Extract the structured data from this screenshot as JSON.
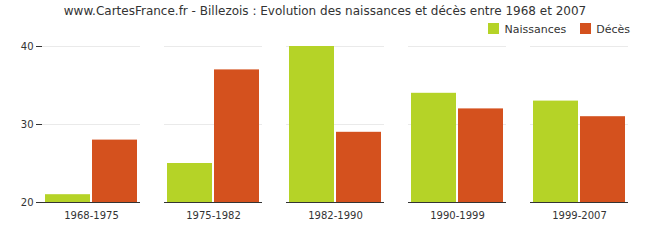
{
  "chart_data": {
    "type": "bar",
    "title": "www.CartesFrance.fr - Billezois : Evolution des naissances et décès entre 1968 et 2007",
    "categories": [
      "1968-1975",
      "1975-1982",
      "1982-1990",
      "1990-1999",
      "1999-2007"
    ],
    "series": [
      {
        "name": "Naissances",
        "color": "#b5d327",
        "values": [
          21,
          25,
          40,
          34,
          33
        ]
      },
      {
        "name": "Décès",
        "color": "#d4511e",
        "values": [
          28,
          37,
          29,
          32,
          31
        ]
      }
    ],
    "ylim": [
      20,
      40
    ],
    "yticks": [
      20,
      30,
      40
    ],
    "grid": true,
    "legend": "upper right"
  }
}
